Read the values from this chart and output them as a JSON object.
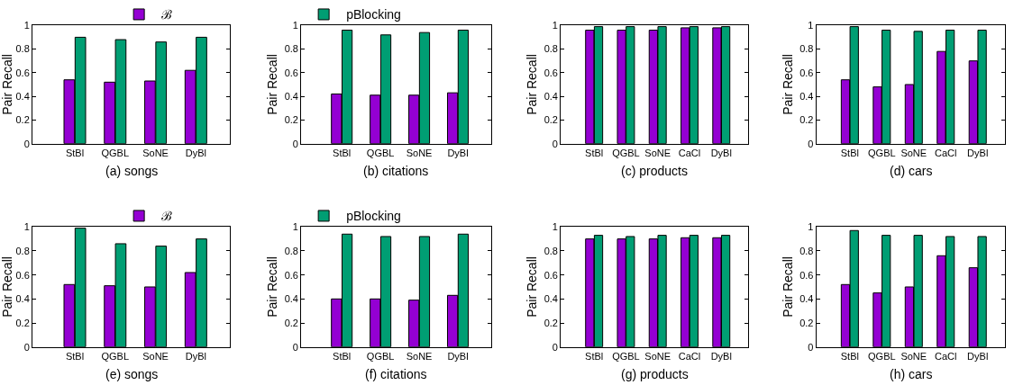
{
  "chart_data": [
    {
      "type": "bar",
      "title": "(a) songs",
      "ylabel": "Pair Recall",
      "categories": [
        "StBl",
        "QGBL",
        "SoNE",
        "DyBl"
      ],
      "ylim": [
        0,
        1
      ],
      "yticks": [
        0,
        0.2,
        0.4,
        0.6,
        0.8,
        1
      ],
      "grid": false,
      "legend": "top right",
      "series": [
        {
          "name": "ℬ",
          "color": "#9400d3",
          "values": [
            0.54,
            0.52,
            0.53,
            0.62
          ]
        },
        {
          "name": "pBlocking",
          "color": "#009e73",
          "values": [
            0.9,
            0.88,
            0.86,
            0.9
          ]
        }
      ]
    },
    {
      "type": "bar",
      "title": "(b) citations",
      "ylabel": "Pair Recall",
      "categories": [
        "StBl",
        "QGBL",
        "SoNE",
        "DyBl"
      ],
      "ylim": [
        0,
        1
      ],
      "yticks": [
        0,
        0.2,
        0.4,
        0.6,
        0.8,
        1
      ],
      "grid": false,
      "series": [
        {
          "color": "#9400d3",
          "values": [
            0.42,
            0.41,
            0.41,
            0.43
          ]
        },
        {
          "color": "#009e73",
          "values": [
            0.96,
            0.92,
            0.94,
            0.96
          ]
        }
      ]
    },
    {
      "type": "bar",
      "title": "(c) products",
      "ylabel": "Pair Recall",
      "categories": [
        "StBl",
        "QGBL",
        "SoNE",
        "CaCl",
        "DyBl"
      ],
      "ylim": [
        0,
        1
      ],
      "yticks": [
        0,
        0.2,
        0.4,
        0.6,
        0.8,
        1
      ],
      "grid": false,
      "series": [
        {
          "color": "#9400d3",
          "values": [
            0.96,
            0.96,
            0.96,
            0.98,
            0.98
          ]
        },
        {
          "color": "#009e73",
          "values": [
            0.99,
            0.99,
            0.99,
            0.99,
            0.99
          ]
        }
      ]
    },
    {
      "type": "bar",
      "title": "(d) cars",
      "ylabel": "Pair Recall",
      "categories": [
        "StBl",
        "QGBL",
        "SoNE",
        "CaCl",
        "DyBl"
      ],
      "ylim": [
        0,
        1
      ],
      "yticks": [
        0,
        0.2,
        0.4,
        0.6,
        0.8,
        1
      ],
      "grid": false,
      "series": [
        {
          "color": "#9400d3",
          "values": [
            0.54,
            0.48,
            0.5,
            0.78,
            0.7
          ]
        },
        {
          "color": "#009e73",
          "values": [
            0.99,
            0.96,
            0.95,
            0.96,
            0.96
          ]
        }
      ]
    },
    {
      "type": "bar",
      "title": "(e) songs",
      "ylabel": "Pair Recall",
      "categories": [
        "StBl",
        "QGBL",
        "SoNE",
        "DyBl"
      ],
      "ylim": [
        0,
        1
      ],
      "yticks": [
        0,
        0.2,
        0.4,
        0.6,
        0.8,
        1
      ],
      "grid": false,
      "legend": "top right",
      "series": [
        {
          "name": "ℬ",
          "color": "#9400d3",
          "values": [
            0.52,
            0.51,
            0.5,
            0.62
          ]
        },
        {
          "name": "pBlocking",
          "color": "#009e73",
          "values": [
            0.99,
            0.86,
            0.84,
            0.9
          ]
        }
      ]
    },
    {
      "type": "bar",
      "title": "(f) citations",
      "ylabel": "Pair Recall",
      "categories": [
        "StBl",
        "QGBL",
        "SoNE",
        "DyBl"
      ],
      "ylim": [
        0,
        1
      ],
      "yticks": [
        0,
        0.2,
        0.4,
        0.6,
        0.8,
        1
      ],
      "grid": false,
      "series": [
        {
          "color": "#9400d3",
          "values": [
            0.4,
            0.4,
            0.39,
            0.43
          ]
        },
        {
          "color": "#009e73",
          "values": [
            0.94,
            0.92,
            0.92,
            0.94
          ]
        }
      ]
    },
    {
      "type": "bar",
      "title": "(g) products",
      "ylabel": "Pair Recall",
      "categories": [
        "StBl",
        "QGBL",
        "SoNE",
        "CaCl",
        "DyBl"
      ],
      "ylim": [
        0,
        1
      ],
      "yticks": [
        0,
        0.2,
        0.4,
        0.6,
        0.8,
        1
      ],
      "grid": false,
      "series": [
        {
          "color": "#9400d3",
          "values": [
            0.9,
            0.9,
            0.9,
            0.91,
            0.91
          ]
        },
        {
          "color": "#009e73",
          "values": [
            0.93,
            0.92,
            0.93,
            0.93,
            0.93
          ]
        }
      ]
    },
    {
      "type": "bar",
      "title": "(h) cars",
      "ylabel": "Pair Recall",
      "categories": [
        "StBl",
        "QGBL",
        "SoNE",
        "CaCl",
        "DyBl"
      ],
      "ylim": [
        0,
        1
      ],
      "yticks": [
        0,
        0.2,
        0.4,
        0.6,
        0.8,
        1
      ],
      "grid": false,
      "series": [
        {
          "color": "#9400d3",
          "values": [
            0.52,
            0.45,
            0.5,
            0.76,
            0.66
          ]
        },
        {
          "color": "#009e73",
          "values": [
            0.97,
            0.93,
            0.93,
            0.92,
            0.92
          ]
        }
      ]
    }
  ]
}
